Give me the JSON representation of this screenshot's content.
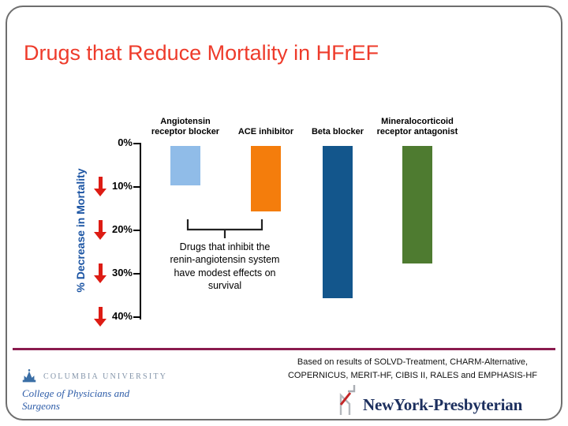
{
  "slide": {
    "title": "Drugs that Reduce Mortality in HFrEF"
  },
  "chart_data": {
    "type": "bar",
    "direction": "downward",
    "ylabel": "% Decrease in Mortality",
    "ylim": [
      0,
      40
    ],
    "ytick_labels": [
      "0%",
      "10%",
      "20%",
      "30%",
      "40%"
    ],
    "categories": [
      "Angiotensin receptor blocker",
      "ACE inhibitor",
      "Beta blocker",
      "Mineralocorticoid receptor antagonist"
    ],
    "values": [
      9,
      15,
      35,
      27
    ],
    "unit": "% decrease in mortality",
    "bar_colors": [
      "#90bce8",
      "#f47d0c",
      "#13568c",
      "#4e7b30"
    ],
    "grid": false,
    "legend": "none",
    "annotation": {
      "text": "Drugs that inhibit the renin-angiotensin system have modest effects on survival",
      "applies_to": [
        "Angiotensin receptor blocker",
        "ACE inhibitor"
      ]
    }
  },
  "footer": {
    "citation_lines": [
      "Based on results of SOLVD-Treatment, CHARM-Alternative,",
      "COPERNICUS, MERIT-HF, CIBIS II, RALES and EMPHASIS-HF"
    ],
    "columbia": {
      "name": "Columbia University",
      "school": "College of Physicians and Surgeons"
    },
    "nyp": {
      "name": "NewYork-Presbyterian"
    }
  },
  "colors": {
    "title": "#ee3b2b",
    "y_axis_label": "#1b54a3",
    "arrow": "#dd1c14",
    "divider": "#8a1b4e"
  }
}
